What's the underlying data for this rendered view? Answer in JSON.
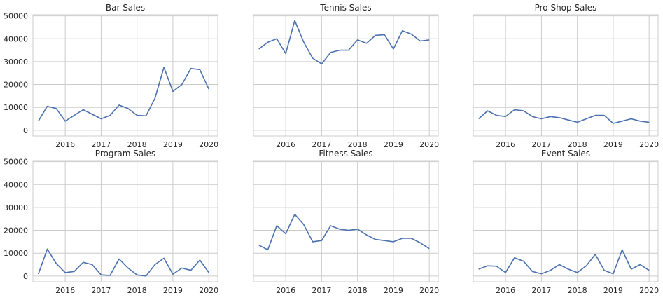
{
  "chart_data": {
    "type": "line",
    "grid": true,
    "line_color": "#4c72b0",
    "x_ticks": [
      "2016",
      "2017",
      "2018",
      "2019",
      "2020"
    ],
    "y_ticks": [
      "0",
      "10000",
      "20000",
      "30000",
      "40000",
      "50000"
    ],
    "xlim": [
      2015.1,
      2020.25
    ],
    "ylim": [
      -2500,
      50500
    ],
    "x": [
      2015.25,
      2015.5,
      2015.75,
      2016.0,
      2016.25,
      2016.5,
      2016.75,
      2017.0,
      2017.25,
      2017.5,
      2017.75,
      2018.0,
      2018.25,
      2018.5,
      2018.75,
      2019.0,
      2019.25,
      2019.5,
      2019.75,
      2020.0
    ],
    "panels": [
      {
        "title": "Bar Sales",
        "values": [
          4000,
          10500,
          9500,
          4000,
          6500,
          9000,
          7000,
          5000,
          6500,
          11000,
          9500,
          6500,
          6300,
          14000,
          27500,
          17000,
          20000,
          27000,
          26500,
          18000
        ]
      },
      {
        "title": "Tennis Sales",
        "values": [
          35500,
          38500,
          40000,
          33500,
          48000,
          38500,
          31500,
          29000,
          34000,
          35000,
          35000,
          39500,
          38000,
          41500,
          41800,
          35500,
          43500,
          42000,
          39000,
          39500
        ]
      },
      {
        "title": "Pro Shop Sales",
        "values": [
          5000,
          8500,
          6500,
          6000,
          9000,
          8500,
          6000,
          5000,
          6000,
          5500,
          4500,
          3500,
          5000,
          6500,
          6500,
          3000,
          4000,
          5000,
          4000,
          3500
        ]
      },
      {
        "title": "Program Sales",
        "values": [
          800,
          11800,
          5500,
          1500,
          2000,
          6000,
          5000,
          500,
          300,
          7500,
          3500,
          500,
          0,
          5000,
          7800,
          800,
          3500,
          2500,
          7000,
          1500
        ]
      },
      {
        "title": "Fitness Sales",
        "values": [
          13500,
          11500,
          22000,
          18500,
          27000,
          22500,
          15000,
          15500,
          22000,
          20500,
          20000,
          20500,
          18000,
          16000,
          15500,
          15000,
          16500,
          16500,
          14500,
          12000
        ]
      },
      {
        "title": "Event Sales",
        "values": [
          3000,
          4500,
          4300,
          1500,
          8000,
          6500,
          2000,
          1000,
          2500,
          5000,
          3000,
          1500,
          4500,
          9500,
          2500,
          1000,
          11500,
          3000,
          5000,
          2500
        ]
      }
    ]
  }
}
